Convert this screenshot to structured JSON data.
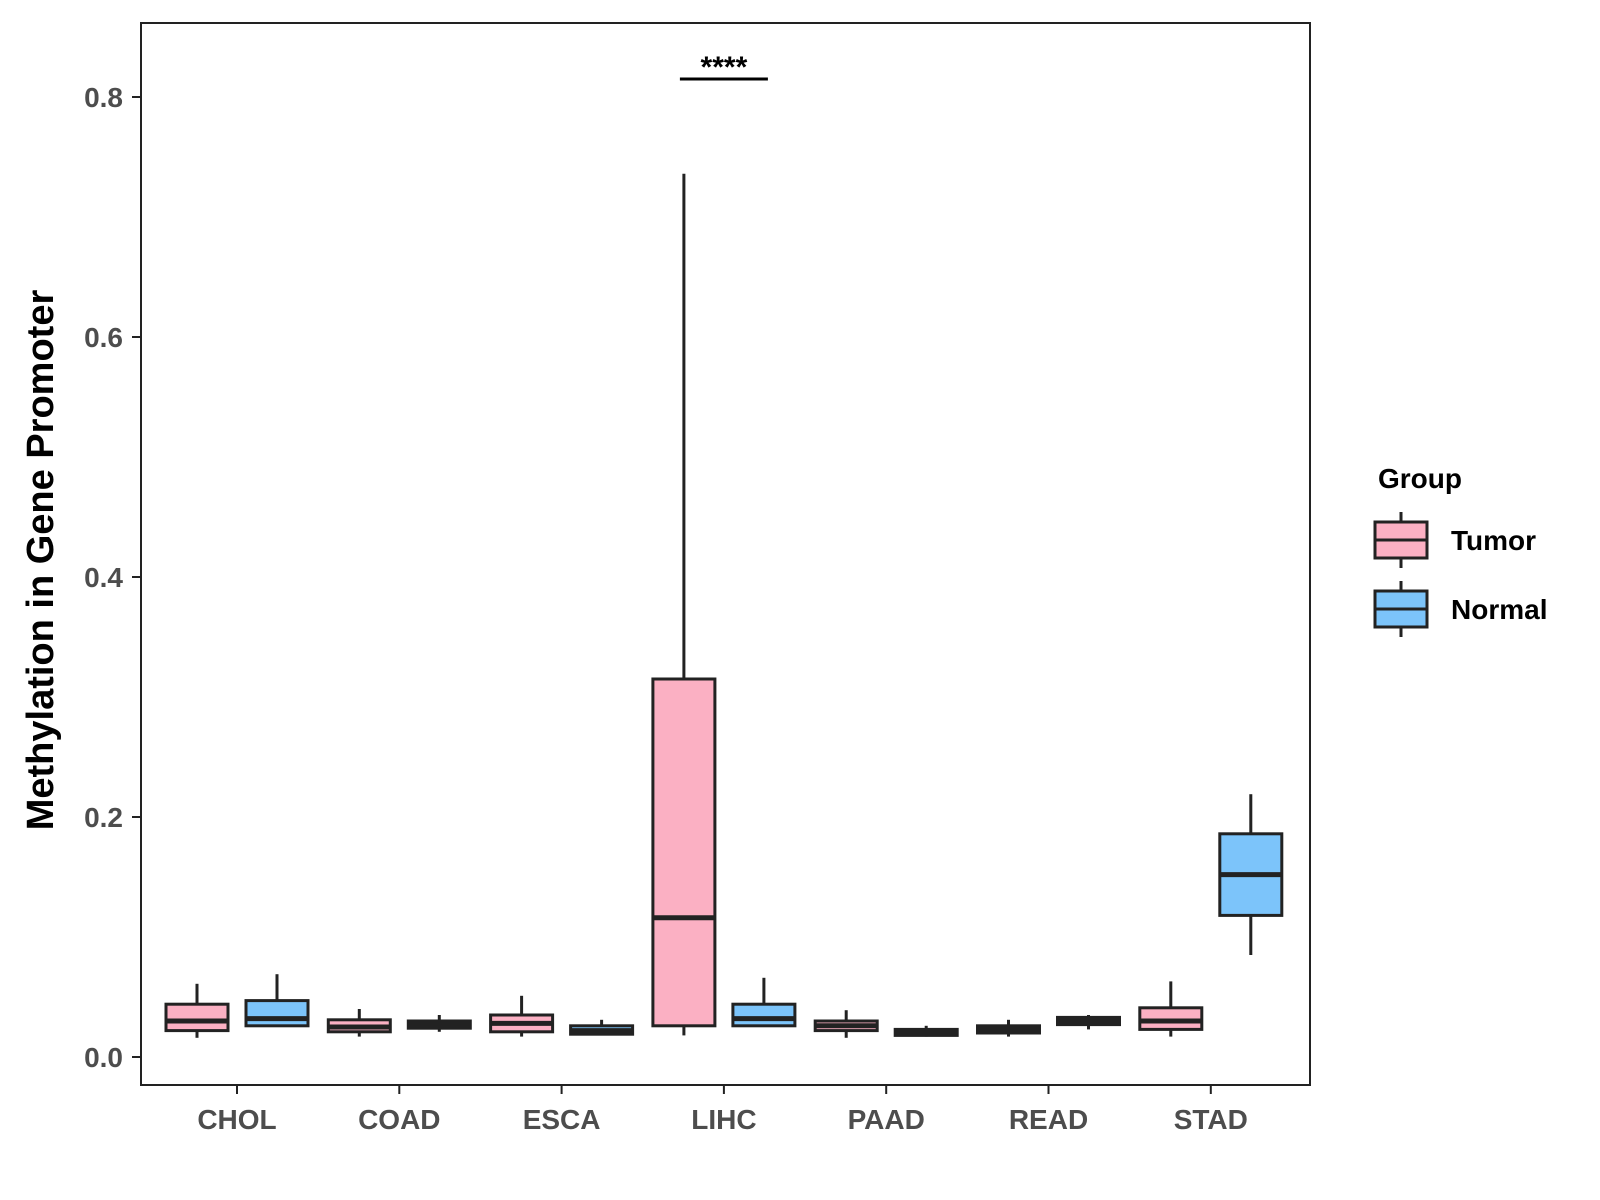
{
  "chart_data": {
    "type": "boxplot",
    "title": "",
    "xlabel": "",
    "ylabel": "Methylation in Gene Promoter",
    "ylim": [
      -0.02,
      0.86
    ],
    "yticks": [
      0.0,
      0.2,
      0.4,
      0.6,
      0.8
    ],
    "ytick_labels": [
      "0.0",
      "0.2",
      "0.4",
      "0.6",
      "0.8"
    ],
    "categories": [
      "CHOL",
      "COAD",
      "ESCA",
      "LIHC",
      "PAAD",
      "READ",
      "STAD"
    ],
    "legend": {
      "title": "Group",
      "position": "right"
    },
    "series": [
      {
        "name": "Tumor",
        "color": "#FBB0C3",
        "boxes": [
          {
            "category": "CHOL",
            "low": 0.016,
            "q1": 0.022,
            "median": 0.03,
            "q3": 0.044,
            "high": 0.061
          },
          {
            "category": "COAD",
            "low": 0.017,
            "q1": 0.021,
            "median": 0.025,
            "q3": 0.031,
            "high": 0.04
          },
          {
            "category": "ESCA",
            "low": 0.017,
            "q1": 0.021,
            "median": 0.028,
            "q3": 0.035,
            "high": 0.051
          },
          {
            "category": "LIHC",
            "low": 0.018,
            "q1": 0.026,
            "median": 0.116,
            "q3": 0.315,
            "high": 0.736
          },
          {
            "category": "PAAD",
            "low": 0.016,
            "q1": 0.022,
            "median": 0.026,
            "q3": 0.03,
            "high": 0.039
          },
          {
            "category": "READ",
            "low": 0.017,
            "q1": 0.02,
            "median": 0.023,
            "q3": 0.026,
            "high": 0.031
          },
          {
            "category": "STAD",
            "low": 0.017,
            "q1": 0.023,
            "median": 0.03,
            "q3": 0.041,
            "high": 0.063
          }
        ]
      },
      {
        "name": "Normal",
        "color": "#7CC4FA",
        "boxes": [
          {
            "category": "CHOL",
            "low": 0.025,
            "q1": 0.026,
            "median": 0.032,
            "q3": 0.047,
            "high": 0.069
          },
          {
            "category": "COAD",
            "low": 0.021,
            "q1": 0.024,
            "median": 0.027,
            "q3": 0.03,
            "high": 0.035
          },
          {
            "category": "ESCA",
            "low": 0.018,
            "q1": 0.019,
            "median": 0.022,
            "q3": 0.026,
            "high": 0.031
          },
          {
            "category": "LIHC",
            "low": 0.025,
            "q1": 0.026,
            "median": 0.032,
            "q3": 0.044,
            "high": 0.066
          },
          {
            "category": "PAAD",
            "low": 0.017,
            "q1": 0.018,
            "median": 0.02,
            "q3": 0.023,
            "high": 0.026
          },
          {
            "category": "READ",
            "low": 0.023,
            "q1": 0.027,
            "median": 0.03,
            "q3": 0.033,
            "high": 0.035
          },
          {
            "category": "STAD",
            "low": 0.085,
            "q1": 0.118,
            "median": 0.152,
            "q3": 0.186,
            "high": 0.219
          }
        ]
      }
    ],
    "annotations": [
      {
        "category": "LIHC",
        "text": "****",
        "y": 0.815
      }
    ]
  }
}
